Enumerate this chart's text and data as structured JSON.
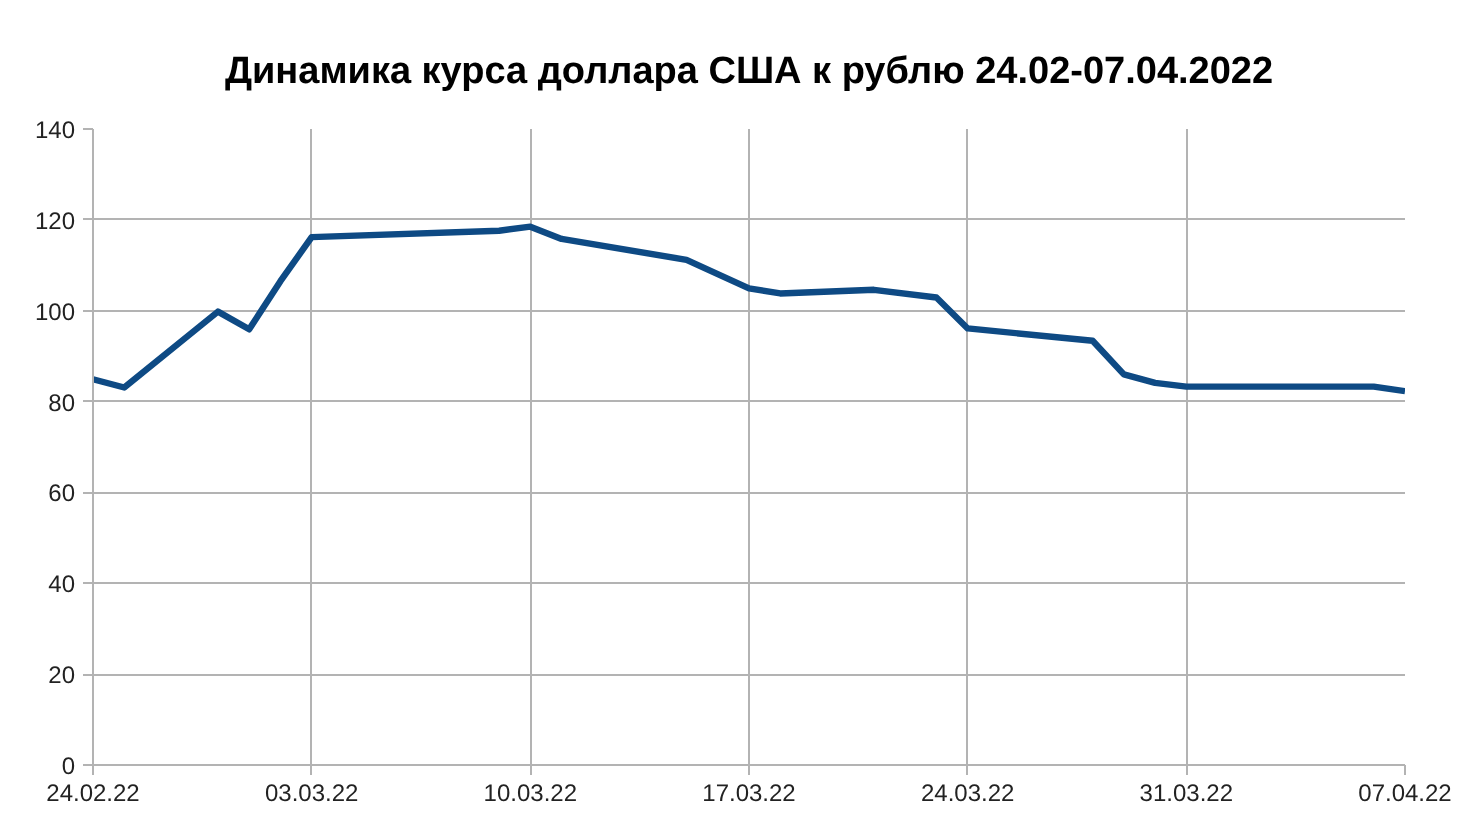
{
  "chart_data": {
    "type": "line",
    "title": "Динамика курса доллара США к рублю 24.02-07.04.2022",
    "x": [
      "2022-02-24",
      "2022-02-25",
      "2022-02-28",
      "2022-03-01",
      "2022-03-02",
      "2022-03-03",
      "2022-03-09",
      "2022-03-10",
      "2022-03-11",
      "2022-03-15",
      "2022-03-17",
      "2022-03-18",
      "2022-03-21",
      "2022-03-23",
      "2022-03-24",
      "2022-03-28",
      "2022-03-29",
      "2022-03-30",
      "2022-03-31",
      "2022-04-06",
      "2022-04-07"
    ],
    "series": [
      {
        "color": "#0e4a84",
        "values": [
          84.9,
          83.1,
          99.8,
          95.9,
          106.5,
          116.2,
          117.6,
          118.5,
          115.8,
          111.2,
          104.9,
          103.8,
          104.6,
          102.9,
          96.1,
          93.4,
          86.0,
          84.1,
          83.3,
          83.3,
          82.3
        ]
      }
    ],
    "xlim": [
      "2022-02-24",
      "2022-04-07"
    ],
    "xticks": [
      {
        "value": "2022-02-24",
        "label": "24.02.22"
      },
      {
        "value": "2022-03-03",
        "label": "03.03.22"
      },
      {
        "value": "2022-03-10",
        "label": "10.03.22"
      },
      {
        "value": "2022-03-17",
        "label": "17.03.22"
      },
      {
        "value": "2022-03-24",
        "label": "24.03.22"
      },
      {
        "value": "2022-03-31",
        "label": "31.03.22"
      },
      {
        "value": "2022-04-07",
        "label": "07.04.22"
      }
    ],
    "ylim": [
      0,
      140
    ],
    "yticks": [
      0,
      20,
      40,
      60,
      80,
      100,
      120,
      140
    ],
    "grid": true,
    "line_style": "solid"
  }
}
